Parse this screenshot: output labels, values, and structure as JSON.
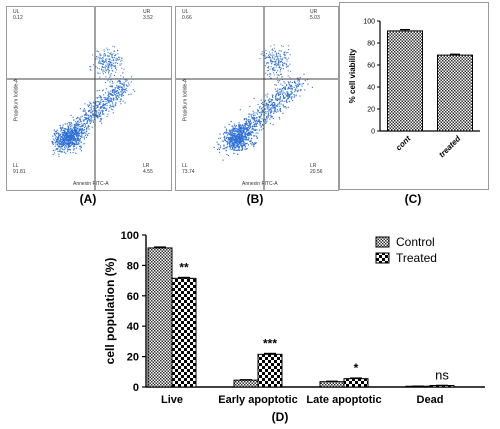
{
  "flow_plots": [
    {
      "caption": "(A)",
      "ul_label": "UL",
      "ul_value": "0.12",
      "ur_label": "UR",
      "ur_value": "3.52",
      "ll_label": "LL",
      "ll_value": "91.81",
      "lr_label": "LR",
      "lr_value": "4.55",
      "xlabel": "Annexin FITC-A",
      "ylabel": "Propidium Iodide-A"
    },
    {
      "caption": "(B)",
      "ul_label": "UL",
      "ul_value": "0.66",
      "ur_label": "UR",
      "ur_value": "5.03",
      "ll_label": "LL",
      "ll_value": "73.74",
      "lr_label": "LR",
      "lr_value": "20.56",
      "xlabel": "Annexin FITC-A",
      "ylabel": "Propidium Iodide-A"
    }
  ],
  "panel_c": {
    "caption": "(C)"
  },
  "panel_d": {
    "caption": "(D)"
  },
  "colors": {
    "scatter": "#2b6fd6",
    "frame": "#9a9a9a",
    "bar_stroke": "#000000"
  },
  "chart_data": [
    {
      "type": "bar",
      "categories": [
        "cont",
        "treated"
      ],
      "values": [
        91,
        69
      ],
      "errors": [
        1.2,
        0.8
      ],
      "title": "",
      "xlabel": "",
      "ylabel": "% cell viability",
      "ylim": [
        0,
        100
      ],
      "yticks": [
        "0",
        "20",
        "40",
        "60",
        "80",
        "100"
      ],
      "grid": false
    },
    {
      "type": "bar",
      "categories": [
        "Live",
        "Early apoptotic",
        "Late apoptotic",
        "Dead"
      ],
      "series": [
        {
          "name": "Control",
          "values": [
            91.5,
            4.5,
            3.5,
            0.5
          ],
          "errors": [
            0.6,
            0.3,
            0.3,
            0.1
          ]
        },
        {
          "name": "Treated",
          "values": [
            71.5,
            21.5,
            5.5,
            1
          ],
          "errors": [
            0.6,
            0.6,
            0.4,
            0.1
          ]
        }
      ],
      "significance": [
        "**",
        "***",
        "*",
        "ns"
      ],
      "title": "",
      "xlabel": "",
      "ylabel": "cell population (%)",
      "ylim": [
        0,
        100
      ],
      "yticks": [
        "0",
        "20",
        "40",
        "60",
        "80",
        "100"
      ],
      "legend_position": "top-right",
      "grid": false
    }
  ]
}
